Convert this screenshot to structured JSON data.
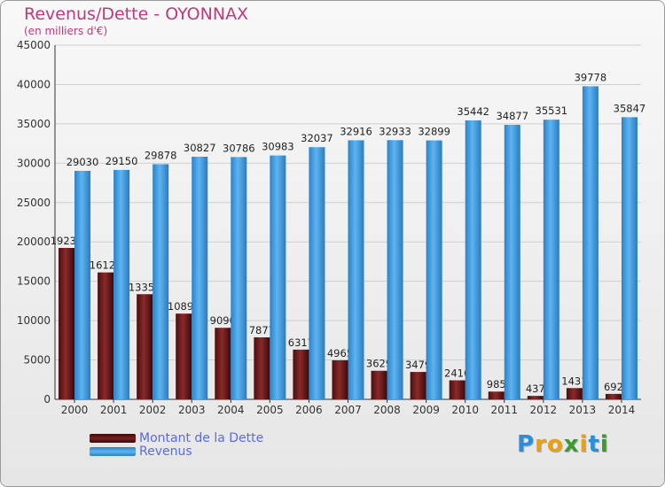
{
  "title": "Revenus/Dette - OYONNAX",
  "subtitle": "(en milliers d'€)",
  "logo": {
    "text": "Proxiti",
    "letters": [
      "P",
      "r",
      "o",
      "x",
      "i",
      "t",
      "i"
    ],
    "colors": [
      "#2a8fd6",
      "#e9a013",
      "#e9a013",
      "#3b9b2e",
      "#e9a013",
      "#2a8fd6",
      "#3b9b2e"
    ]
  },
  "legend": [
    {
      "label": "Montant de la Dette",
      "color": "#7a1f1f"
    },
    {
      "label": "Revenus",
      "color": "#3d97dd"
    }
  ],
  "chart_data": {
    "type": "bar",
    "title": "Revenus/Dette - OYONNAX",
    "subtitle": "(en milliers d'€)",
    "categories": [
      "2000",
      "2001",
      "2002",
      "2003",
      "2004",
      "2005",
      "2006",
      "2007",
      "2008",
      "2009",
      "2010",
      "2011",
      "2012",
      "2013",
      "2014"
    ],
    "series": [
      {
        "name": "Montant de la Dette",
        "color": "#7a1f1f",
        "values": [
          19239,
          16127,
          13359,
          10892,
          9090,
          7877,
          6317,
          4965,
          3629,
          3479,
          2416,
          985,
          437,
          1431,
          692
        ],
        "labels": [
          "19239",
          "16127",
          "13359",
          "10892",
          "9090",
          "7877",
          "6317",
          "4965",
          "3629",
          "3479",
          "2416",
          "985",
          "437",
          "1431",
          "692"
        ]
      },
      {
        "name": "Revenus",
        "color": "#3d97dd",
        "values": [
          29030,
          29150,
          29878,
          30827,
          30786,
          30983,
          32037,
          32916,
          32933,
          32899,
          35442,
          34877,
          35531,
          39778,
          35847
        ],
        "labels": [
          "29030",
          "29150",
          "29878",
          "30827",
          "30786",
          "30983",
          "32037",
          "32916",
          "32933",
          "32899",
          "35442",
          "34877",
          "35531",
          "39778",
          "35847"
        ]
      }
    ],
    "ylim": [
      0,
      45000
    ],
    "yticks": [
      0,
      5000,
      10000,
      15000,
      20000,
      25000,
      30000,
      35000,
      40000,
      45000
    ],
    "grid": true,
    "legend_position": "bottom-left"
  }
}
